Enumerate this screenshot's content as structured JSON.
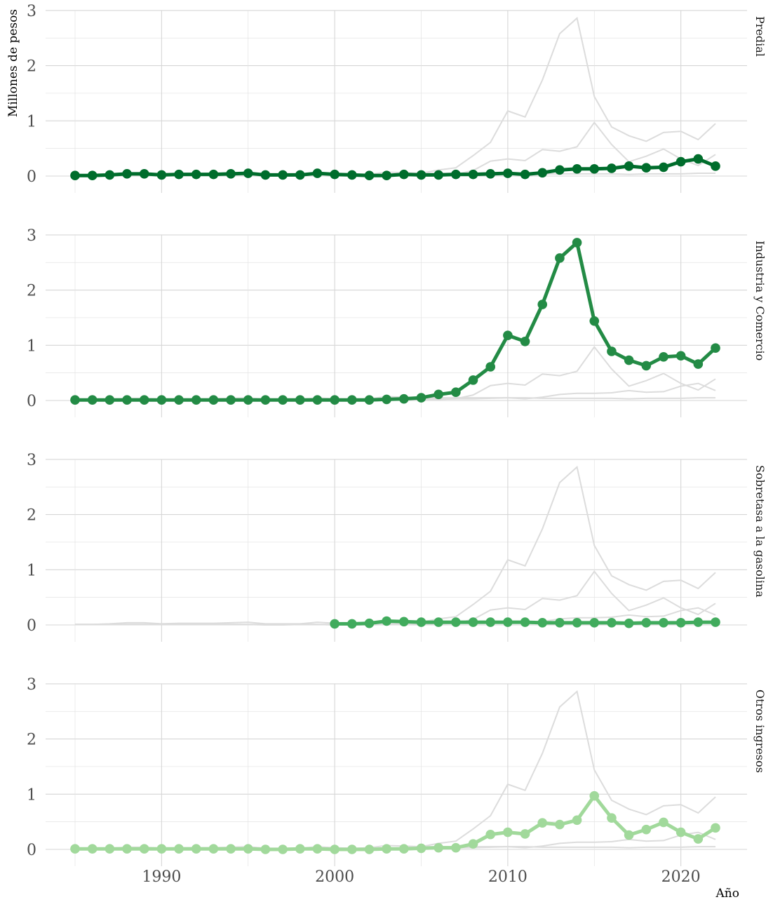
{
  "chart_data": {
    "type": "line",
    "title": "",
    "xlabel": "Año",
    "ylabel": "Millones de pesos",
    "layout": "small-multiples, 4 vertical facets sharing x axis; other series shown as grey background lines",
    "xlim": [
      1985,
      2022
    ],
    "ylim": [
      0,
      3
    ],
    "x_ticks": [
      1990,
      2000,
      2010,
      2020
    ],
    "y_ticks": [
      0,
      1,
      2,
      3
    ],
    "grid": true,
    "x": [
      1985,
      1986,
      1987,
      1988,
      1989,
      1990,
      1991,
      1992,
      1993,
      1994,
      1995,
      1996,
      1997,
      1998,
      1999,
      2000,
      2001,
      2002,
      2003,
      2004,
      2005,
      2006,
      2007,
      2008,
      2009,
      2010,
      2011,
      2012,
      2013,
      2014,
      2015,
      2016,
      2017,
      2018,
      2019,
      2020,
      2021,
      2022
    ],
    "series": [
      {
        "name": "Predial",
        "color": "#006d2c",
        "values": [
          0.01,
          0.01,
          0.02,
          0.04,
          0.04,
          0.02,
          0.03,
          0.03,
          0.03,
          0.04,
          0.05,
          0.02,
          0.02,
          0.02,
          0.05,
          0.03,
          0.02,
          0.01,
          0.01,
          0.03,
          0.02,
          0.02,
          0.03,
          0.03,
          0.04,
          0.05,
          0.03,
          0.06,
          0.11,
          0.13,
          0.13,
          0.14,
          0.18,
          0.15,
          0.16,
          0.26,
          0.31,
          0.18
        ]
      },
      {
        "name": "Industria y Comercio",
        "color": "#238b45",
        "values": [
          0.01,
          0.01,
          0.01,
          0.01,
          0.01,
          0.01,
          0.01,
          0.01,
          0.01,
          0.01,
          0.01,
          0.01,
          0.01,
          0.01,
          0.01,
          0.01,
          0.01,
          0.01,
          0.02,
          0.03,
          0.05,
          0.11,
          0.15,
          0.37,
          0.61,
          1.18,
          1.07,
          1.74,
          2.58,
          2.86,
          1.44,
          0.89,
          0.73,
          0.63,
          0.79,
          0.81,
          0.66,
          0.95
        ]
      },
      {
        "name": "Sobretasa a la gasolina",
        "color": "#41ab5d",
        "values": [
          null,
          null,
          null,
          null,
          null,
          null,
          null,
          null,
          null,
          null,
          null,
          null,
          null,
          null,
          null,
          0.02,
          0.02,
          0.03,
          0.07,
          0.06,
          0.05,
          0.05,
          0.05,
          0.05,
          0.05,
          0.05,
          0.05,
          0.04,
          0.04,
          0.04,
          0.04,
          0.04,
          0.03,
          0.04,
          0.04,
          0.04,
          0.05,
          0.05
        ]
      },
      {
        "name": "Otros ingresos",
        "color": "#a1d99b",
        "values": [
          0.01,
          0.01,
          0.01,
          0.01,
          0.01,
          0.01,
          0.01,
          0.01,
          0.01,
          0.01,
          0.01,
          0.0,
          0.0,
          0.01,
          0.01,
          0.0,
          0.0,
          0.0,
          0.01,
          0.01,
          0.02,
          0.03,
          0.03,
          0.1,
          0.27,
          0.31,
          0.28,
          0.48,
          0.45,
          0.53,
          0.97,
          0.57,
          0.26,
          0.36,
          0.49,
          0.31,
          0.19,
          0.39
        ]
      }
    ]
  }
}
